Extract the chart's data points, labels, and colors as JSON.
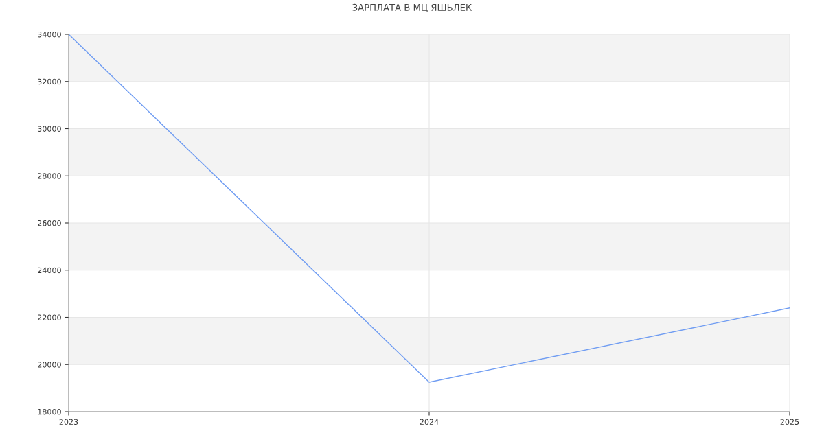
{
  "chart_data": {
    "type": "line",
    "title": "ЗАРПЛАТА В МЦ ЯШЬЛЕК",
    "x": [
      2023,
      2024,
      2025
    ],
    "series": [
      {
        "color": "#6f9cf2",
        "values": [
          34000,
          19250,
          22400
        ]
      }
    ],
    "xlim": [
      2023,
      2025
    ],
    "xticks": [
      2023,
      2024,
      2025
    ],
    "ylim": [
      18000,
      34000
    ],
    "yticks": [
      18000,
      20000,
      22000,
      24000,
      26000,
      28000,
      30000,
      32000,
      34000
    ],
    "grid": true,
    "marker": "none",
    "line_style": "solid"
  }
}
